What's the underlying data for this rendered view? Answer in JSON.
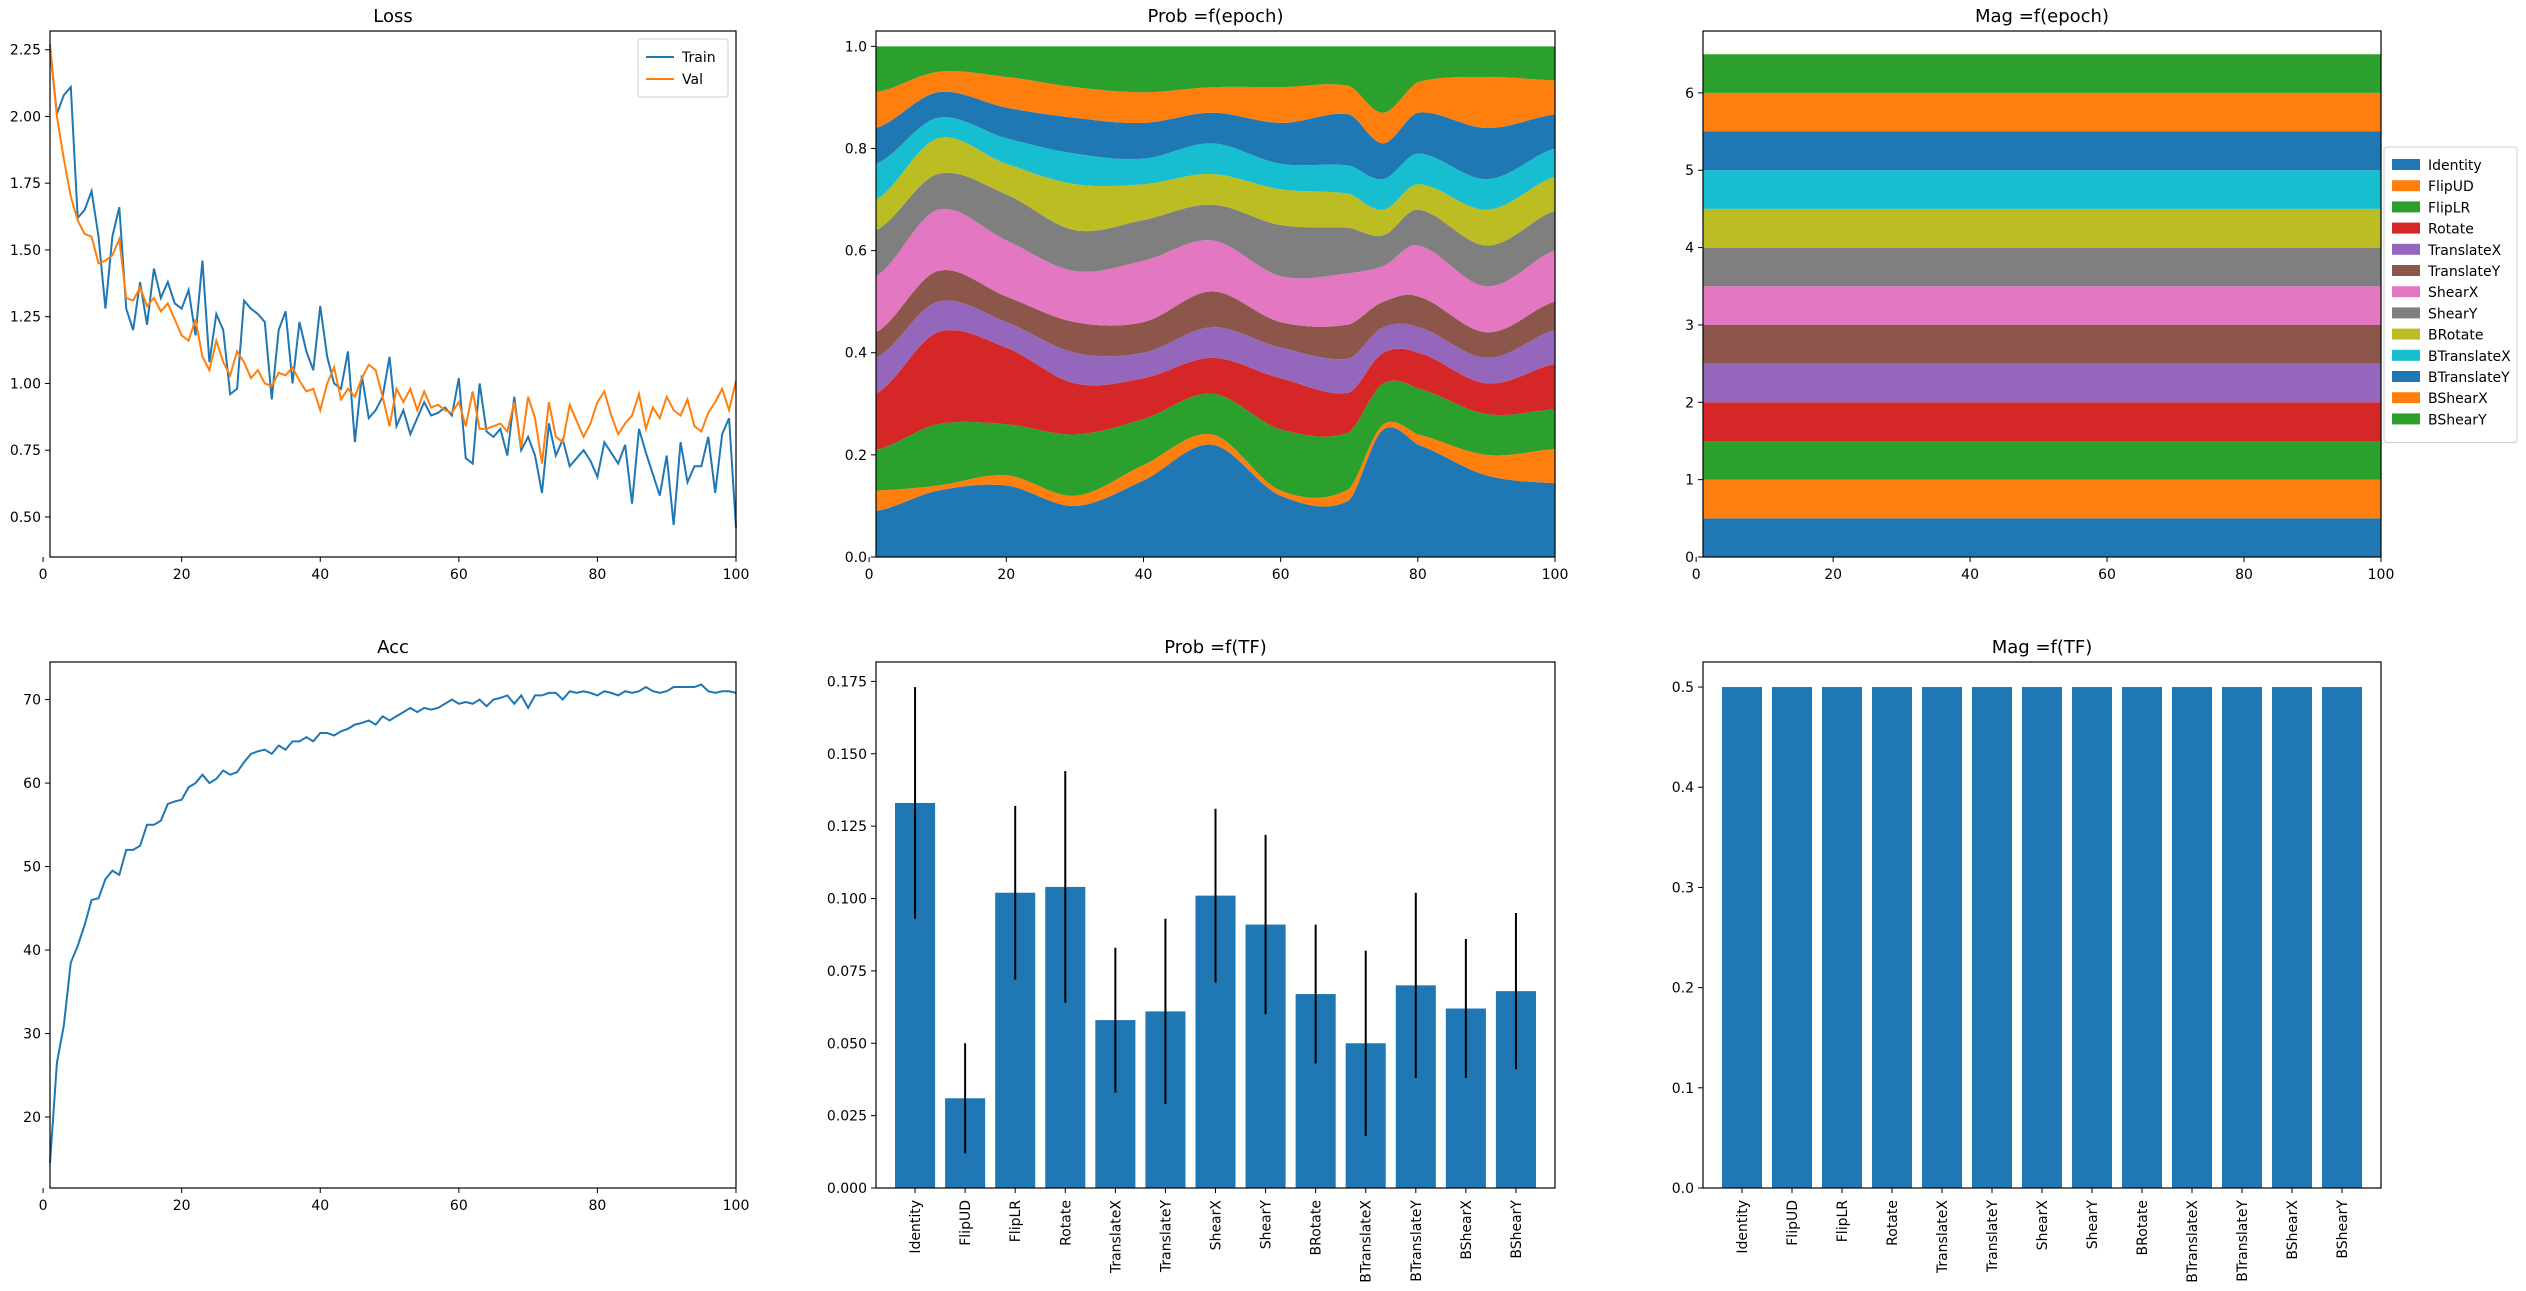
{
  "colors": {
    "Identity": "#1f77b4",
    "FlipUD": "#ff7f0e",
    "FlipLR": "#2ca02c",
    "Rotate": "#d62728",
    "TranslateX": "#9467bd",
    "TranslateY": "#8c564b",
    "ShearX": "#e377c2",
    "ShearY": "#7f7f7f",
    "BRotate": "#bcbd22",
    "BTranslateX": "#17becf",
    "BTranslateY": "#1f77b4",
    "BShearX": "#ff7f0e",
    "BShearY": "#2ca02c"
  },
  "chart_data": [
    {
      "id": "loss",
      "type": "line",
      "title": "Loss",
      "xlim": [
        1,
        100
      ],
      "ylim": [
        0.35,
        2.32
      ],
      "xticks": [
        0,
        20,
        40,
        60,
        80,
        100
      ],
      "yticks": [
        0.5,
        0.75,
        1.0,
        1.25,
        1.5,
        1.75,
        2.0,
        2.25
      ],
      "ytick_labels": [
        "0.50",
        "0.75",
        "1.00",
        "1.25",
        "1.50",
        "1.75",
        "2.00",
        "2.25"
      ],
      "legend": "top-right",
      "series": [
        {
          "name": "Train",
          "color": "#1f77b4",
          "values": [
            2.25,
            2.01,
            2.08,
            2.11,
            1.62,
            1.65,
            1.72,
            1.55,
            1.28,
            1.55,
            1.66,
            1.28,
            1.2,
            1.38,
            1.22,
            1.43,
            1.32,
            1.38,
            1.3,
            1.28,
            1.35,
            1.18,
            1.46,
            1.08,
            1.26,
            1.2,
            0.96,
            0.98,
            1.31,
            1.28,
            1.26,
            1.23,
            0.94,
            1.2,
            1.27,
            1.0,
            1.23,
            1.12,
            1.05,
            1.29,
            1.1,
            1.0,
            0.98,
            1.12,
            0.78,
            1.03,
            0.87,
            0.9,
            0.95,
            1.1,
            0.84,
            0.9,
            0.81,
            0.87,
            0.93,
            0.88,
            0.89,
            0.91,
            0.88,
            1.02,
            0.72,
            0.7,
            1.0,
            0.82,
            0.8,
            0.83,
            0.73,
            0.95,
            0.75,
            0.8,
            0.73,
            0.59,
            0.85,
            0.73,
            0.79,
            0.69,
            0.72,
            0.75,
            0.71,
            0.65,
            0.78,
            0.74,
            0.7,
            0.77,
            0.55,
            0.83,
            0.74,
            0.66,
            0.58,
            0.73,
            0.47,
            0.78,
            0.63,
            0.69,
            0.69,
            0.8,
            0.59,
            0.81,
            0.87,
            0.46
          ]
        },
        {
          "name": "Val",
          "color": "#ff7f0e",
          "values": [
            2.27,
            2.0,
            1.84,
            1.7,
            1.61,
            1.56,
            1.55,
            1.45,
            1.46,
            1.48,
            1.54,
            1.32,
            1.31,
            1.36,
            1.29,
            1.32,
            1.27,
            1.3,
            1.24,
            1.18,
            1.16,
            1.24,
            1.1,
            1.05,
            1.16,
            1.08,
            1.03,
            1.12,
            1.08,
            1.02,
            1.05,
            1.0,
            0.99,
            1.04,
            1.03,
            1.06,
            1.01,
            0.97,
            0.98,
            0.9,
            1.0,
            1.06,
            0.94,
            0.98,
            0.95,
            1.02,
            1.07,
            1.05,
            0.95,
            0.84,
            0.98,
            0.93,
            0.98,
            0.9,
            0.97,
            0.91,
            0.92,
            0.9,
            0.89,
            0.93,
            0.84,
            0.97,
            0.83,
            0.83,
            0.84,
            0.85,
            0.82,
            0.93,
            0.76,
            0.95,
            0.87,
            0.7,
            0.93,
            0.8,
            0.78,
            0.92,
            0.86,
            0.8,
            0.85,
            0.93,
            0.97,
            0.88,
            0.81,
            0.85,
            0.88,
            0.96,
            0.83,
            0.91,
            0.87,
            0.95,
            0.9,
            0.88,
            0.94,
            0.84,
            0.82,
            0.89,
            0.93,
            0.98,
            0.9,
            1.01
          ]
        }
      ]
    },
    {
      "id": "acc",
      "type": "line",
      "title": "Acc",
      "xlim": [
        1,
        100
      ],
      "ylim": [
        11.5,
        74.5
      ],
      "xticks": [
        0,
        20,
        40,
        60,
        80,
        100
      ],
      "yticks": [
        20,
        30,
        40,
        50,
        60,
        70
      ],
      "series": [
        {
          "name": "",
          "color": "#1f77b4",
          "values": [
            14.5,
            26.5,
            31.0,
            38.5,
            40.5,
            43.0,
            46.0,
            46.2,
            48.5,
            49.5,
            49.0,
            52.0,
            52.0,
            52.5,
            55.0,
            55.0,
            55.5,
            57.5,
            57.8,
            58.0,
            59.5,
            60.0,
            61.0,
            60.0,
            60.5,
            61.5,
            61.0,
            61.3,
            62.5,
            63.5,
            63.8,
            64.0,
            63.5,
            64.5,
            64.0,
            65.0,
            65.0,
            65.5,
            65.0,
            66.0,
            66.0,
            65.7,
            66.2,
            66.5,
            67.0,
            67.2,
            67.5,
            67.0,
            68.0,
            67.5,
            68.0,
            68.5,
            69.0,
            68.5,
            69.0,
            68.8,
            69.0,
            69.5,
            70.0,
            69.5,
            69.7,
            69.5,
            70.0,
            69.2,
            70.0,
            70.2,
            70.5,
            69.5,
            70.5,
            69.0,
            70.5,
            70.5,
            70.8,
            70.8,
            70.0,
            71.0,
            70.8,
            71.0,
            70.8,
            70.5,
            71.0,
            70.8,
            70.5,
            71.0,
            70.8,
            71.0,
            71.5,
            71.0,
            70.8,
            71.0,
            71.5,
            71.5,
            71.5,
            71.5,
            71.8,
            71.0,
            70.8,
            71.0,
            71.0,
            70.8
          ]
        }
      ]
    },
    {
      "id": "prob_epoch",
      "type": "area",
      "title": "Prob =f(epoch)",
      "xlim": [
        1,
        100
      ],
      "ylim": [
        0,
        1.03
      ],
      "xticks": [
        0,
        20,
        40,
        60,
        80,
        100
      ],
      "yticks": [
        0.0,
        0.2,
        0.4,
        0.6,
        0.8,
        1.0
      ],
      "ytick_labels": [
        "0.0",
        "0.2",
        "0.4",
        "0.6",
        "0.8",
        "1.0"
      ],
      "x": [
        1,
        10,
        20,
        30,
        40,
        50,
        60,
        70,
        75,
        80,
        90,
        100
      ],
      "stacked": true,
      "series": [
        {
          "name": "Identity",
          "values": [
            0.09,
            0.13,
            0.14,
            0.1,
            0.15,
            0.22,
            0.12,
            0.1,
            0.25,
            0.22,
            0.16,
            0.13
          ]
        },
        {
          "name": "FlipUD",
          "values": [
            0.04,
            0.01,
            0.02,
            0.02,
            0.03,
            0.02,
            0.01,
            0.02,
            0.01,
            0.02,
            0.04,
            0.06
          ]
        },
        {
          "name": "FlipLR",
          "values": [
            0.08,
            0.12,
            0.1,
            0.12,
            0.09,
            0.08,
            0.12,
            0.1,
            0.08,
            0.09,
            0.08,
            0.07
          ]
        },
        {
          "name": "Rotate",
          "values": [
            0.11,
            0.18,
            0.15,
            0.1,
            0.08,
            0.07,
            0.1,
            0.07,
            0.06,
            0.07,
            0.06,
            0.08
          ]
        },
        {
          "name": "TranslateX",
          "values": [
            0.07,
            0.06,
            0.05,
            0.06,
            0.05,
            0.06,
            0.06,
            0.06,
            0.05,
            0.05,
            0.05,
            0.06
          ]
        },
        {
          "name": "TranslateY",
          "values": [
            0.05,
            0.06,
            0.05,
            0.06,
            0.06,
            0.07,
            0.05,
            0.06,
            0.05,
            0.06,
            0.05,
            0.05
          ]
        },
        {
          "name": "ShearX",
          "values": [
            0.11,
            0.12,
            0.11,
            0.1,
            0.12,
            0.1,
            0.09,
            0.09,
            0.07,
            0.1,
            0.09,
            0.09
          ]
        },
        {
          "name": "ShearY",
          "values": [
            0.09,
            0.07,
            0.09,
            0.08,
            0.08,
            0.07,
            0.1,
            0.08,
            0.06,
            0.07,
            0.08,
            0.07
          ]
        },
        {
          "name": "BRotate",
          "values": [
            0.06,
            0.07,
            0.06,
            0.09,
            0.07,
            0.06,
            0.07,
            0.06,
            0.05,
            0.05,
            0.07,
            0.06
          ]
        },
        {
          "name": "BTranslateX",
          "values": [
            0.07,
            0.04,
            0.05,
            0.06,
            0.05,
            0.06,
            0.05,
            0.05,
            0.06,
            0.06,
            0.06,
            0.05
          ]
        },
        {
          "name": "BTranslateY",
          "values": [
            0.07,
            0.05,
            0.06,
            0.07,
            0.07,
            0.06,
            0.08,
            0.09,
            0.07,
            0.08,
            0.1,
            0.06
          ]
        },
        {
          "name": "BShearX",
          "values": [
            0.07,
            0.04,
            0.06,
            0.06,
            0.06,
            0.05,
            0.07,
            0.05,
            0.06,
            0.06,
            0.1,
            0.06
          ]
        },
        {
          "name": "BShearY",
          "values": [
            0.09,
            0.05,
            0.06,
            0.08,
            0.09,
            0.08,
            0.08,
            0.07,
            0.13,
            0.07,
            0.06,
            0.06
          ]
        }
      ]
    },
    {
      "id": "mag_epoch",
      "type": "area",
      "title": "Mag =f(epoch)",
      "xlim": [
        1,
        100
      ],
      "ylim": [
        0,
        6.8
      ],
      "xticks": [
        0,
        20,
        40,
        60,
        80,
        100
      ],
      "yticks": [
        0,
        1,
        2,
        3,
        4,
        5,
        6
      ],
      "x": [
        1,
        100
      ],
      "stacked": true,
      "legend": "right",
      "series": [
        {
          "name": "Identity",
          "values": [
            0.5,
            0.5
          ]
        },
        {
          "name": "FlipUD",
          "values": [
            0.5,
            0.5
          ]
        },
        {
          "name": "FlipLR",
          "values": [
            0.5,
            0.5
          ]
        },
        {
          "name": "Rotate",
          "values": [
            0.5,
            0.5
          ]
        },
        {
          "name": "TranslateX",
          "values": [
            0.5,
            0.5
          ]
        },
        {
          "name": "TranslateY",
          "values": [
            0.5,
            0.5
          ]
        },
        {
          "name": "ShearX",
          "values": [
            0.5,
            0.5
          ]
        },
        {
          "name": "ShearY",
          "values": [
            0.5,
            0.5
          ]
        },
        {
          "name": "BRotate",
          "values": [
            0.5,
            0.5
          ]
        },
        {
          "name": "BTranslateX",
          "values": [
            0.5,
            0.5
          ]
        },
        {
          "name": "BTranslateY",
          "values": [
            0.5,
            0.5
          ]
        },
        {
          "name": "BShearX",
          "values": [
            0.5,
            0.5
          ]
        },
        {
          "name": "BShearY",
          "values": [
            0.5,
            0.5
          ]
        }
      ]
    },
    {
      "id": "prob_tf",
      "type": "bar",
      "title": "Prob =f(TF)",
      "ylim": [
        0,
        0.1817
      ],
      "yticks": [
        0,
        0.025,
        0.05,
        0.075,
        0.1,
        0.125,
        0.15,
        0.175
      ],
      "ytick_labels": [
        "0.000",
        "0.025",
        "0.050",
        "0.075",
        "0.100",
        "0.125",
        "0.150",
        "0.175"
      ],
      "categories": [
        "Identity",
        "FlipUD",
        "FlipLR",
        "Rotate",
        "TranslateX",
        "TranslateY",
        "ShearX",
        "ShearY",
        "BRotate",
        "BTranslateX",
        "BTranslateY",
        "BShearX",
        "BShearY"
      ],
      "values": [
        0.133,
        0.031,
        0.102,
        0.104,
        0.058,
        0.061,
        0.101,
        0.091,
        0.067,
        0.05,
        0.07,
        0.062,
        0.068
      ],
      "errors": [
        0.04,
        0.019,
        0.03,
        0.04,
        0.025,
        0.032,
        0.03,
        0.031,
        0.024,
        0.032,
        0.032,
        0.024,
        0.027
      ],
      "color": "#1f77b4"
    },
    {
      "id": "mag_tf",
      "type": "bar",
      "title": "Mag =f(TF)",
      "ylim": [
        0,
        0.525
      ],
      "yticks": [
        0,
        0.1,
        0.2,
        0.3,
        0.4,
        0.5
      ],
      "ytick_labels": [
        "0.0",
        "0.1",
        "0.2",
        "0.3",
        "0.4",
        "0.5"
      ],
      "categories": [
        "Identity",
        "FlipUD",
        "FlipLR",
        "Rotate",
        "TranslateX",
        "TranslateY",
        "ShearX",
        "ShearY",
        "BRotate",
        "BTranslateX",
        "BTranslateY",
        "BShearX",
        "BShearY"
      ],
      "values": [
        0.5,
        0.5,
        0.5,
        0.5,
        0.5,
        0.5,
        0.5,
        0.5,
        0.5,
        0.5,
        0.5,
        0.5,
        0.5
      ],
      "color": "#1f77b4"
    }
  ],
  "legend": {
    "entries": [
      "Identity",
      "FlipUD",
      "FlipLR",
      "Rotate",
      "TranslateX",
      "TranslateY",
      "ShearX",
      "ShearY",
      "BRotate",
      "BTranslateX",
      "BTranslateY",
      "BShearX",
      "BShearY"
    ]
  }
}
